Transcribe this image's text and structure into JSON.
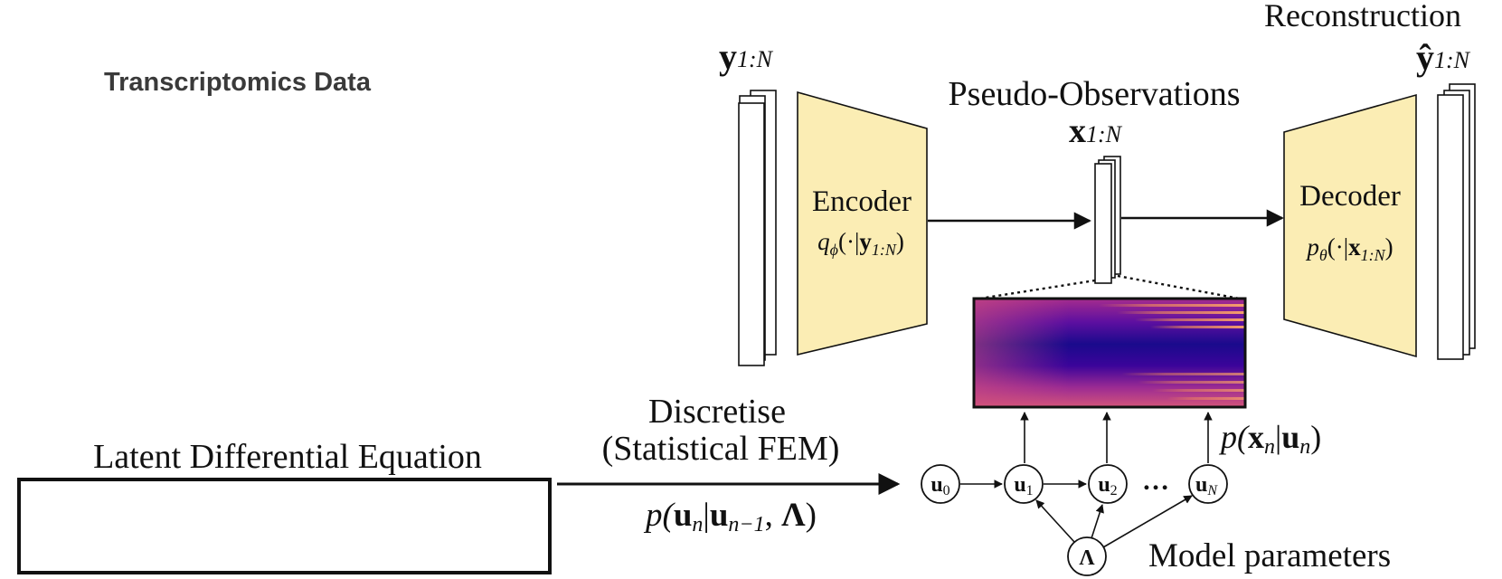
{
  "labels": {
    "transcriptomics": "Transcriptomics Data",
    "reconstruction": "Reconstruction",
    "pseudo_observations": "Pseudo-Observations",
    "latent_de": "Latent Differential Equation",
    "discretise_1": "Discretise",
    "discretise_2": "(Statistical FEM)",
    "model_parameters": "Model parameters"
  },
  "math": {
    "y_input": {
      "base": "y",
      "sub": "1:N"
    },
    "x_pseudo": {
      "base": "x",
      "sub": "1:N"
    },
    "y_hat": {
      "base": "ŷ",
      "sub": "1:N"
    },
    "encoder_dist": {
      "q": "q",
      "qsub": "ϕ",
      "args": "(·|",
      "var": "y",
      "sub": "1:N",
      "close": ")"
    },
    "decoder_dist": {
      "q": "p",
      "qsub": "θ",
      "args": "(·|",
      "var": "x",
      "sub": "1:N",
      "close": ")"
    },
    "emission": {
      "pre": "p(",
      "x": "x",
      "xs": "n",
      "bar": "|",
      "u": "u",
      "us": "n",
      "close": ")"
    },
    "transition": {
      "pre": "p(",
      "u": "u",
      "us": "n",
      "bar": "|",
      "u2": "u",
      "u2s": "n−1",
      "sep": ", ",
      "lam": "Λ",
      "close": ")"
    }
  },
  "blocks": {
    "encoder": "Encoder",
    "decoder": "Decoder"
  },
  "nodes": [
    {
      "base": "u",
      "sub": "0"
    },
    {
      "base": "u",
      "sub": "1"
    },
    {
      "base": "u",
      "sub": "2"
    },
    {
      "base": "u",
      "sub": "N"
    }
  ],
  "ellipsis": "…",
  "lambda_node": "Λ",
  "colors": {
    "block_fill": "#fbedb4",
    "heatmap_dark": "#0d0887",
    "heatmap_mid": "#7e03a8",
    "heatmap_pink": "#cc4778",
    "heatmap_light": "#f89540"
  }
}
